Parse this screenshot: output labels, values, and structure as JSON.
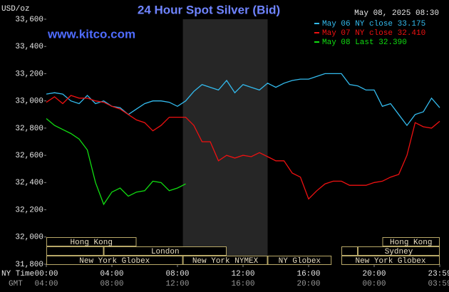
{
  "chart_data": {
    "type": "line",
    "title": "24 Hour Spot Silver (Bid)",
    "ylabel": "USD/oz",
    "timestamp": "May 08, 2025 08:30",
    "source": "www.kitco.com",
    "xlabel": "NY Time",
    "x2label": "GMT",
    "x": [
      0,
      0.5,
      1,
      1.5,
      2,
      2.5,
      3,
      3.5,
      4,
      4.5,
      5,
      5.5,
      6,
      6.5,
      7,
      7.5,
      8,
      8.5,
      9,
      9.5,
      10,
      10.5,
      11,
      11.5,
      12,
      12.5,
      13,
      13.5,
      14,
      14.5,
      15,
      15.5,
      16,
      16.5,
      17,
      17.5,
      18,
      18.5,
      19,
      19.5,
      20,
      20.5,
      21,
      21.5,
      22,
      22.5,
      23,
      23.5,
      24
    ],
    "series": [
      {
        "name": "May 06 NY close 33.175",
        "color": "#33bbee",
        "values": [
          33050,
          33060,
          33050,
          33000,
          32980,
          33040,
          32980,
          33000,
          32960,
          32950,
          32900,
          32940,
          32980,
          33000,
          33000,
          32990,
          32960,
          33000,
          33070,
          33120,
          33100,
          33080,
          33150,
          33060,
          33120,
          33100,
          33080,
          33130,
          33100,
          33130,
          33150,
          33160,
          33160,
          33180,
          33200,
          33200,
          33200,
          33120,
          33110,
          33080,
          33080,
          32960,
          32980,
          32900,
          32820,
          32900,
          32920,
          33020,
          32950
        ]
      },
      {
        "name": "May 07 NY close 32.410",
        "color": "#ee1111",
        "values": [
          32990,
          33030,
          32980,
          33040,
          33020,
          33020,
          33000,
          32990,
          32960,
          32940,
          32900,
          32860,
          32840,
          32780,
          32820,
          32880,
          32880,
          32880,
          32820,
          32700,
          32700,
          32560,
          32600,
          32580,
          32600,
          32590,
          32620,
          32590,
          32560,
          32560,
          32470,
          32440,
          32280,
          32340,
          32390,
          32410,
          32410,
          32380,
          32380,
          32380,
          32400,
          32410,
          32440,
          32460,
          32600,
          32840,
          32810,
          32800,
          32850
        ]
      },
      {
        "name": "May 08 Last 32.390",
        "color": "#11dd11",
        "values": [
          32870,
          32820,
          32790,
          32760,
          32720,
          32640,
          32400,
          32240,
          32330,
          32360,
          32300,
          32330,
          32340,
          32410,
          32400,
          32340,
          32360,
          32390,
          null,
          null,
          null,
          null,
          null,
          null,
          null,
          null,
          null,
          null,
          null,
          null,
          null,
          null,
          null,
          null,
          null,
          null,
          null,
          null,
          null,
          null,
          null,
          null,
          null,
          null,
          null,
          null,
          null,
          null,
          null
        ]
      }
    ],
    "xlim": [
      0,
      24
    ],
    "xticks": [
      {
        "value": 0,
        "label": "00:00"
      },
      {
        "value": 4,
        "label": "04:00"
      },
      {
        "value": 8,
        "label": "08:00"
      },
      {
        "value": 12,
        "label": "12:00"
      },
      {
        "value": 16,
        "label": "16:00"
      },
      {
        "value": 20,
        "label": "20:00"
      },
      {
        "value": 24,
        "label": "23:59"
      }
    ],
    "x2tick_labels": [
      "04:00",
      "08:00",
      "12:00",
      "16:00",
      "20:00",
      "00:00",
      "03:59"
    ],
    "ylim": [
      31800,
      33600
    ],
    "yticks": [
      {
        "value": 31800,
        "label": "31,800"
      },
      {
        "value": 32000,
        "label": "32,000"
      },
      {
        "value": 32200,
        "label": "32,200"
      },
      {
        "value": 32400,
        "label": "32,400"
      },
      {
        "value": 32600,
        "label": "32,600"
      },
      {
        "value": 32800,
        "label": "32,800"
      },
      {
        "value": 33000,
        "label": "33,000"
      },
      {
        "value": 33200,
        "label": "33,200"
      },
      {
        "value": 33400,
        "label": "33,400"
      },
      {
        "value": 33600,
        "label": "33,600"
      }
    ],
    "shaded_range": [
      8.33,
      13.5
    ],
    "sessions": [
      [
        {
          "label": "Hong Kong",
          "start": 0,
          "end": 5.5
        },
        {
          "label": "Hong Kong",
          "start": 20.5,
          "end": 24
        }
      ],
      [
        {
          "label": null,
          "start": 0,
          "end": 3.5
        },
        {
          "label": "London",
          "start": 3.5,
          "end": 11
        },
        {
          "label": null,
          "start": 18,
          "end": 19
        },
        {
          "label": "Sydney",
          "start": 19,
          "end": 24
        }
      ],
      [
        {
          "label": "New York Globex",
          "start": 0,
          "end": 8.33
        },
        {
          "label": "New York NYMEX",
          "start": 8.33,
          "end": 13.5
        },
        {
          "label": "NY Globex",
          "start": 13.5,
          "end": 17.4
        },
        {
          "label": "New York Globex",
          "start": 18,
          "end": 24
        }
      ]
    ]
  }
}
